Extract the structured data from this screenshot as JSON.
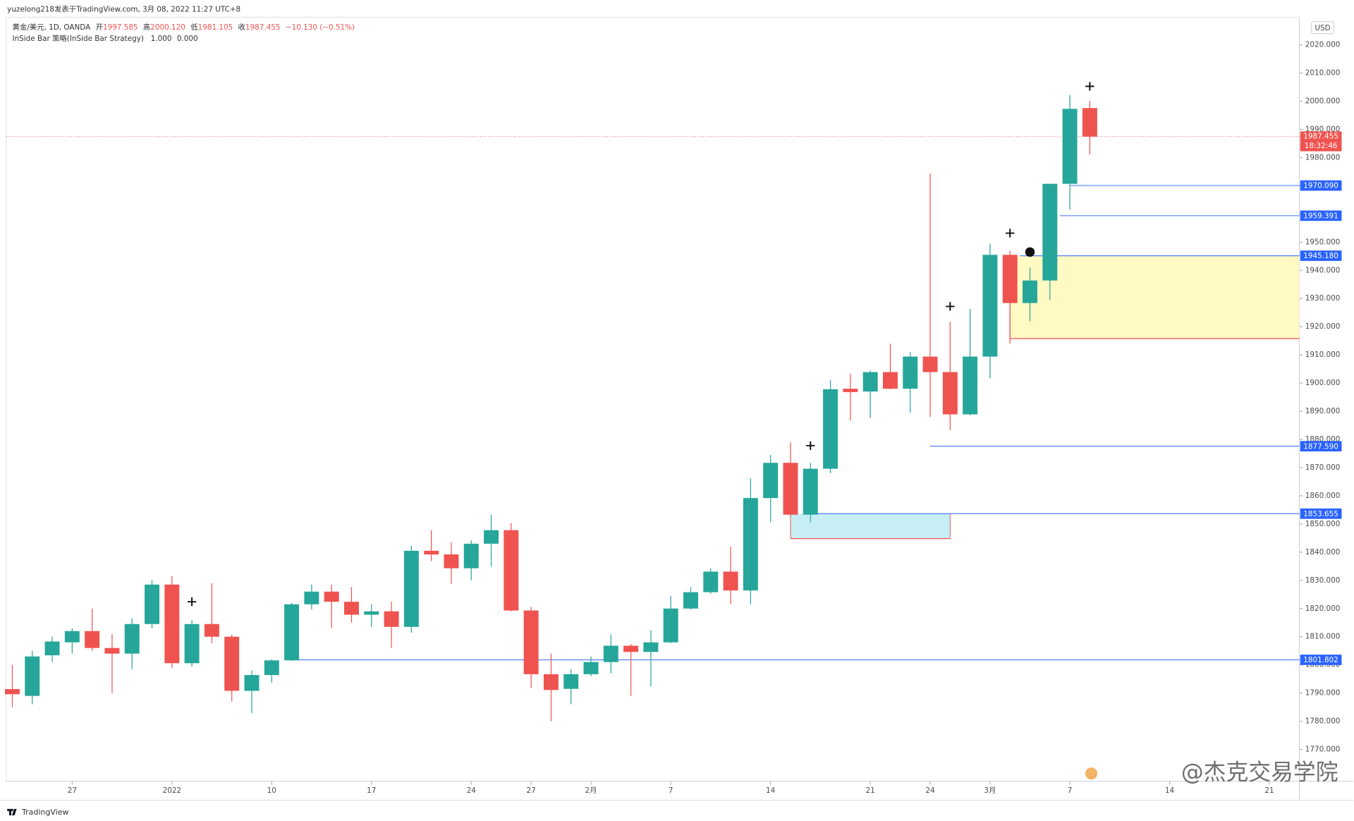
{
  "header": {
    "publisher": "yuzelong218发表于TradingView.com, 3月 08, 2022 11:27 UTC+8",
    "symbol": "黄金/美元, 1D, OANDA",
    "ohlc_legend": [
      {
        "label": "开",
        "value": "1997.585"
      },
      {
        "label": "高",
        "value": "2000.120"
      },
      {
        "label": "低",
        "value": "1981.105"
      },
      {
        "label": "收",
        "value": "1987.455"
      }
    ],
    "change": "−10.130 (−0.51%)",
    "indicator": "InSide Bar 策略(InSide Bar Strategy)",
    "indicator_values": [
      "1.000",
      "0.000"
    ],
    "currency": "USD",
    "footer": "TradingView",
    "watermark": "@杰克交易学院"
  },
  "chart_data": {
    "type": "candlestick",
    "categories": [
      null,
      null,
      null,
      null,
      null,
      null,
      null,
      null,
      null,
      null,
      null,
      null,
      null,
      null,
      null,
      null,
      null,
      null,
      null,
      null,
      null,
      null,
      null,
      null,
      null,
      null,
      null,
      null,
      null,
      null,
      null,
      null,
      null,
      null,
      null,
      null,
      null,
      null,
      null,
      null,
      null,
      null,
      null,
      null,
      null,
      null,
      null,
      null,
      null,
      null,
      null,
      null,
      null,
      null,
      null
    ],
    "open": [
      1791.4,
      1789,
      1803.4,
      1808,
      1812,
      1806,
      1804,
      1814.5,
      1828.5,
      1800.6,
      1814.5,
      1810,
      1790.8,
      1796.4,
      1801.6,
      1821.5,
      1826,
      1822.4,
      1817.8,
      1819,
      1813.5,
      1840.5,
      1839.2,
      1834.3,
      1843,
      1847.8,
      1819.3,
      1796.7,
      1791.5,
      1796.7,
      1801,
      1806.8,
      1804.6,
      1808,
      1820,
      1825.8,
      1833.1,
      1826.4,
      1859.2,
      1871.7,
      1853.3,
      1869.6,
      1898,
      1897,
      1903.9,
      1898,
      1909.4,
      1903.9,
      1888.9,
      1909.4,
      1945.5,
      1928.4,
      1936.4,
      1970.7,
      1997.585
    ],
    "high": [
      1800,
      1805,
      1810,
      1813,
      1820,
      1811,
      1816.5,
      1830,
      1831.5,
      1816,
      1829,
      1810.7,
      1798,
      1802,
      1822,
      1828.5,
      1828.5,
      1827.6,
      1821.5,
      1822.4,
      1842.3,
      1847.8,
      1843.5,
      1844.2,
      1853.3,
      1850.3,
      1820.6,
      1804,
      1798.5,
      1803,
      1810.8,
      1807.4,
      1812.3,
      1824.5,
      1827.6,
      1834.3,
      1842,
      1866.2,
      1874.5,
      1879,
      1871.7,
      1901.1,
      1903.3,
      1904.5,
      1914,
      1911,
      1974.3,
      1921.7,
      1926.3,
      1949.5,
      1947,
      1941,
      1970.7,
      2002.2,
      2000.12
    ],
    "low": [
      1785,
      1786,
      1801,
      1804,
      1805,
      1790,
      1798.5,
      1813,
      1799,
      1799.5,
      1807.7,
      1787,
      1782.9,
      1793.6,
      1801.4,
      1819.6,
      1813,
      1815,
      1813.5,
      1806,
      1811.4,
      1836.8,
      1828.8,
      1830,
      1835,
      1819,
      1791.8,
      1780,
      1786,
      1796,
      1797,
      1789,
      1792.4,
      1807.7,
      1819.6,
      1825.2,
      1821.5,
      1821.5,
      1850.6,
      1852.7,
      1850.6,
      1868,
      1886.7,
      1887.6,
      1897.8,
      1889.5,
      1888,
      1883.4,
      1888.6,
      1901.7,
      1914,
      1922,
      1929.6,
      1961.5,
      1981.105
    ],
    "close": [
      1789.6,
      1803,
      1808.3,
      1812,
      1806,
      1804,
      1814.5,
      1828.5,
      1800.6,
      1814.5,
      1810,
      1790.8,
      1796.4,
      1801.6,
      1821.5,
      1826,
      1822.4,
      1817.8,
      1819,
      1813.5,
      1840.5,
      1839.2,
      1834.3,
      1843,
      1847.8,
      1819.3,
      1796.7,
      1791.1,
      1796.7,
      1801,
      1806.8,
      1804.6,
      1808,
      1820,
      1825.8,
      1833.1,
      1826.4,
      1859.2,
      1871.7,
      1853.3,
      1869.6,
      1897.8,
      1896.8,
      1903.9,
      1898,
      1909.4,
      1903.9,
      1888.9,
      1909.4,
      1945.5,
      1928.4,
      1936.4,
      1970.7,
      1997.3,
      1987.455
    ],
    "up_color": "#26a69a",
    "down_color": "#ef5350",
    "xlim": [
      -0.3,
      64.5
    ],
    "xticks": [
      {
        "value": 3,
        "label": "27"
      },
      {
        "value": 8,
        "label": "2022"
      },
      {
        "value": 13,
        "label": "10"
      },
      {
        "value": 18,
        "label": "17"
      },
      {
        "value": 23,
        "label": "24"
      },
      {
        "value": 26,
        "label": "27"
      },
      {
        "value": 29,
        "label": "2月"
      },
      {
        "value": 33,
        "label": "7"
      },
      {
        "value": 38,
        "label": "14"
      },
      {
        "value": 43,
        "label": "21"
      },
      {
        "value": 46,
        "label": "24"
      },
      {
        "value": 49,
        "label": "3月"
      },
      {
        "value": 53,
        "label": "7"
      },
      {
        "value": 58,
        "label": "14"
      },
      {
        "value": 63,
        "label": "21"
      }
    ],
    "ylim": [
      1758.7,
      2029.8
    ],
    "yticks": [
      {
        "value": 1770,
        "label": "1770.000"
      },
      {
        "value": 1780,
        "label": "1780.000"
      },
      {
        "value": 1790,
        "label": "1790.000"
      },
      {
        "value": 1800,
        "label": "1800.000"
      },
      {
        "value": 1810,
        "label": "1810.000"
      },
      {
        "value": 1820,
        "label": "1820.000"
      },
      {
        "value": 1830,
        "label": "1830.000"
      },
      {
        "value": 1840,
        "label": "1840.000"
      },
      {
        "value": 1850,
        "label": "1850.000"
      },
      {
        "value": 1860,
        "label": "1860.000"
      },
      {
        "value": 1870,
        "label": "1870.000"
      },
      {
        "value": 1880,
        "label": "1880.000"
      },
      {
        "value": 1890,
        "label": "1890.000"
      },
      {
        "value": 1900,
        "label": "1900.000"
      },
      {
        "value": 1910,
        "label": "1910.000"
      },
      {
        "value": 1920,
        "label": "1920.000"
      },
      {
        "value": 1930,
        "label": "1930.000"
      },
      {
        "value": 1940,
        "label": "1940.000"
      },
      {
        "value": 1950,
        "label": "1950.000"
      },
      {
        "value": 1960,
        "label": "1960.000"
      },
      {
        "value": 1970,
        "label": "1970.000"
      },
      {
        "value": 1980,
        "label": "1980.000"
      },
      {
        "value": 1990,
        "label": "1990.000"
      },
      {
        "value": 2000,
        "label": "2000.000"
      },
      {
        "value": 2010,
        "label": "2010.000"
      },
      {
        "value": 2020,
        "label": "2020.000"
      }
    ],
    "grid": false,
    "price_lines": [
      {
        "value": 1970.09,
        "label": "1970.090",
        "start": 53,
        "color": "#2962ff"
      },
      {
        "value": 1959.391,
        "label": "1959.391",
        "start": 52.5,
        "color": "#2962ff"
      },
      {
        "value": 1945.18,
        "label": "1945.180",
        "start": 50.5,
        "color": "#2962ff"
      },
      {
        "value": 1877.59,
        "label": "1877.590",
        "start": 46,
        "color": "#2962ff"
      },
      {
        "value": 1853.655,
        "label": "1853.655",
        "start": 40,
        "color": "#2962ff"
      },
      {
        "value": 1801.802,
        "label": "1801.802",
        "start": 14,
        "color": "#2962ff"
      }
    ],
    "current_price": {
      "value": 1987.455,
      "label": "1987.455",
      "countdown": "18:32:46",
      "color": "#ef5350"
    },
    "zones": [
      {
        "start": 50,
        "end": 64.5,
        "low": 1915.8,
        "high": 1945.18,
        "color": "#fff9c4"
      },
      {
        "start": 39,
        "end": 47,
        "low": 1844.8,
        "high": 1853.655,
        "color": "#c8eef5"
      }
    ],
    "markers": [
      {
        "shape": "plus",
        "index": 9,
        "price": 1822.4
      },
      {
        "shape": "plus",
        "index": 40,
        "price": 1877.8
      },
      {
        "shape": "plus",
        "index": 47,
        "price": 1927.2
      },
      {
        "shape": "plus",
        "index": 50,
        "price": 1953.2
      },
      {
        "shape": "plus",
        "index": 54,
        "price": 2005.3
      },
      {
        "shape": "dot",
        "index": 51,
        "price": 1946.5
      }
    ]
  }
}
